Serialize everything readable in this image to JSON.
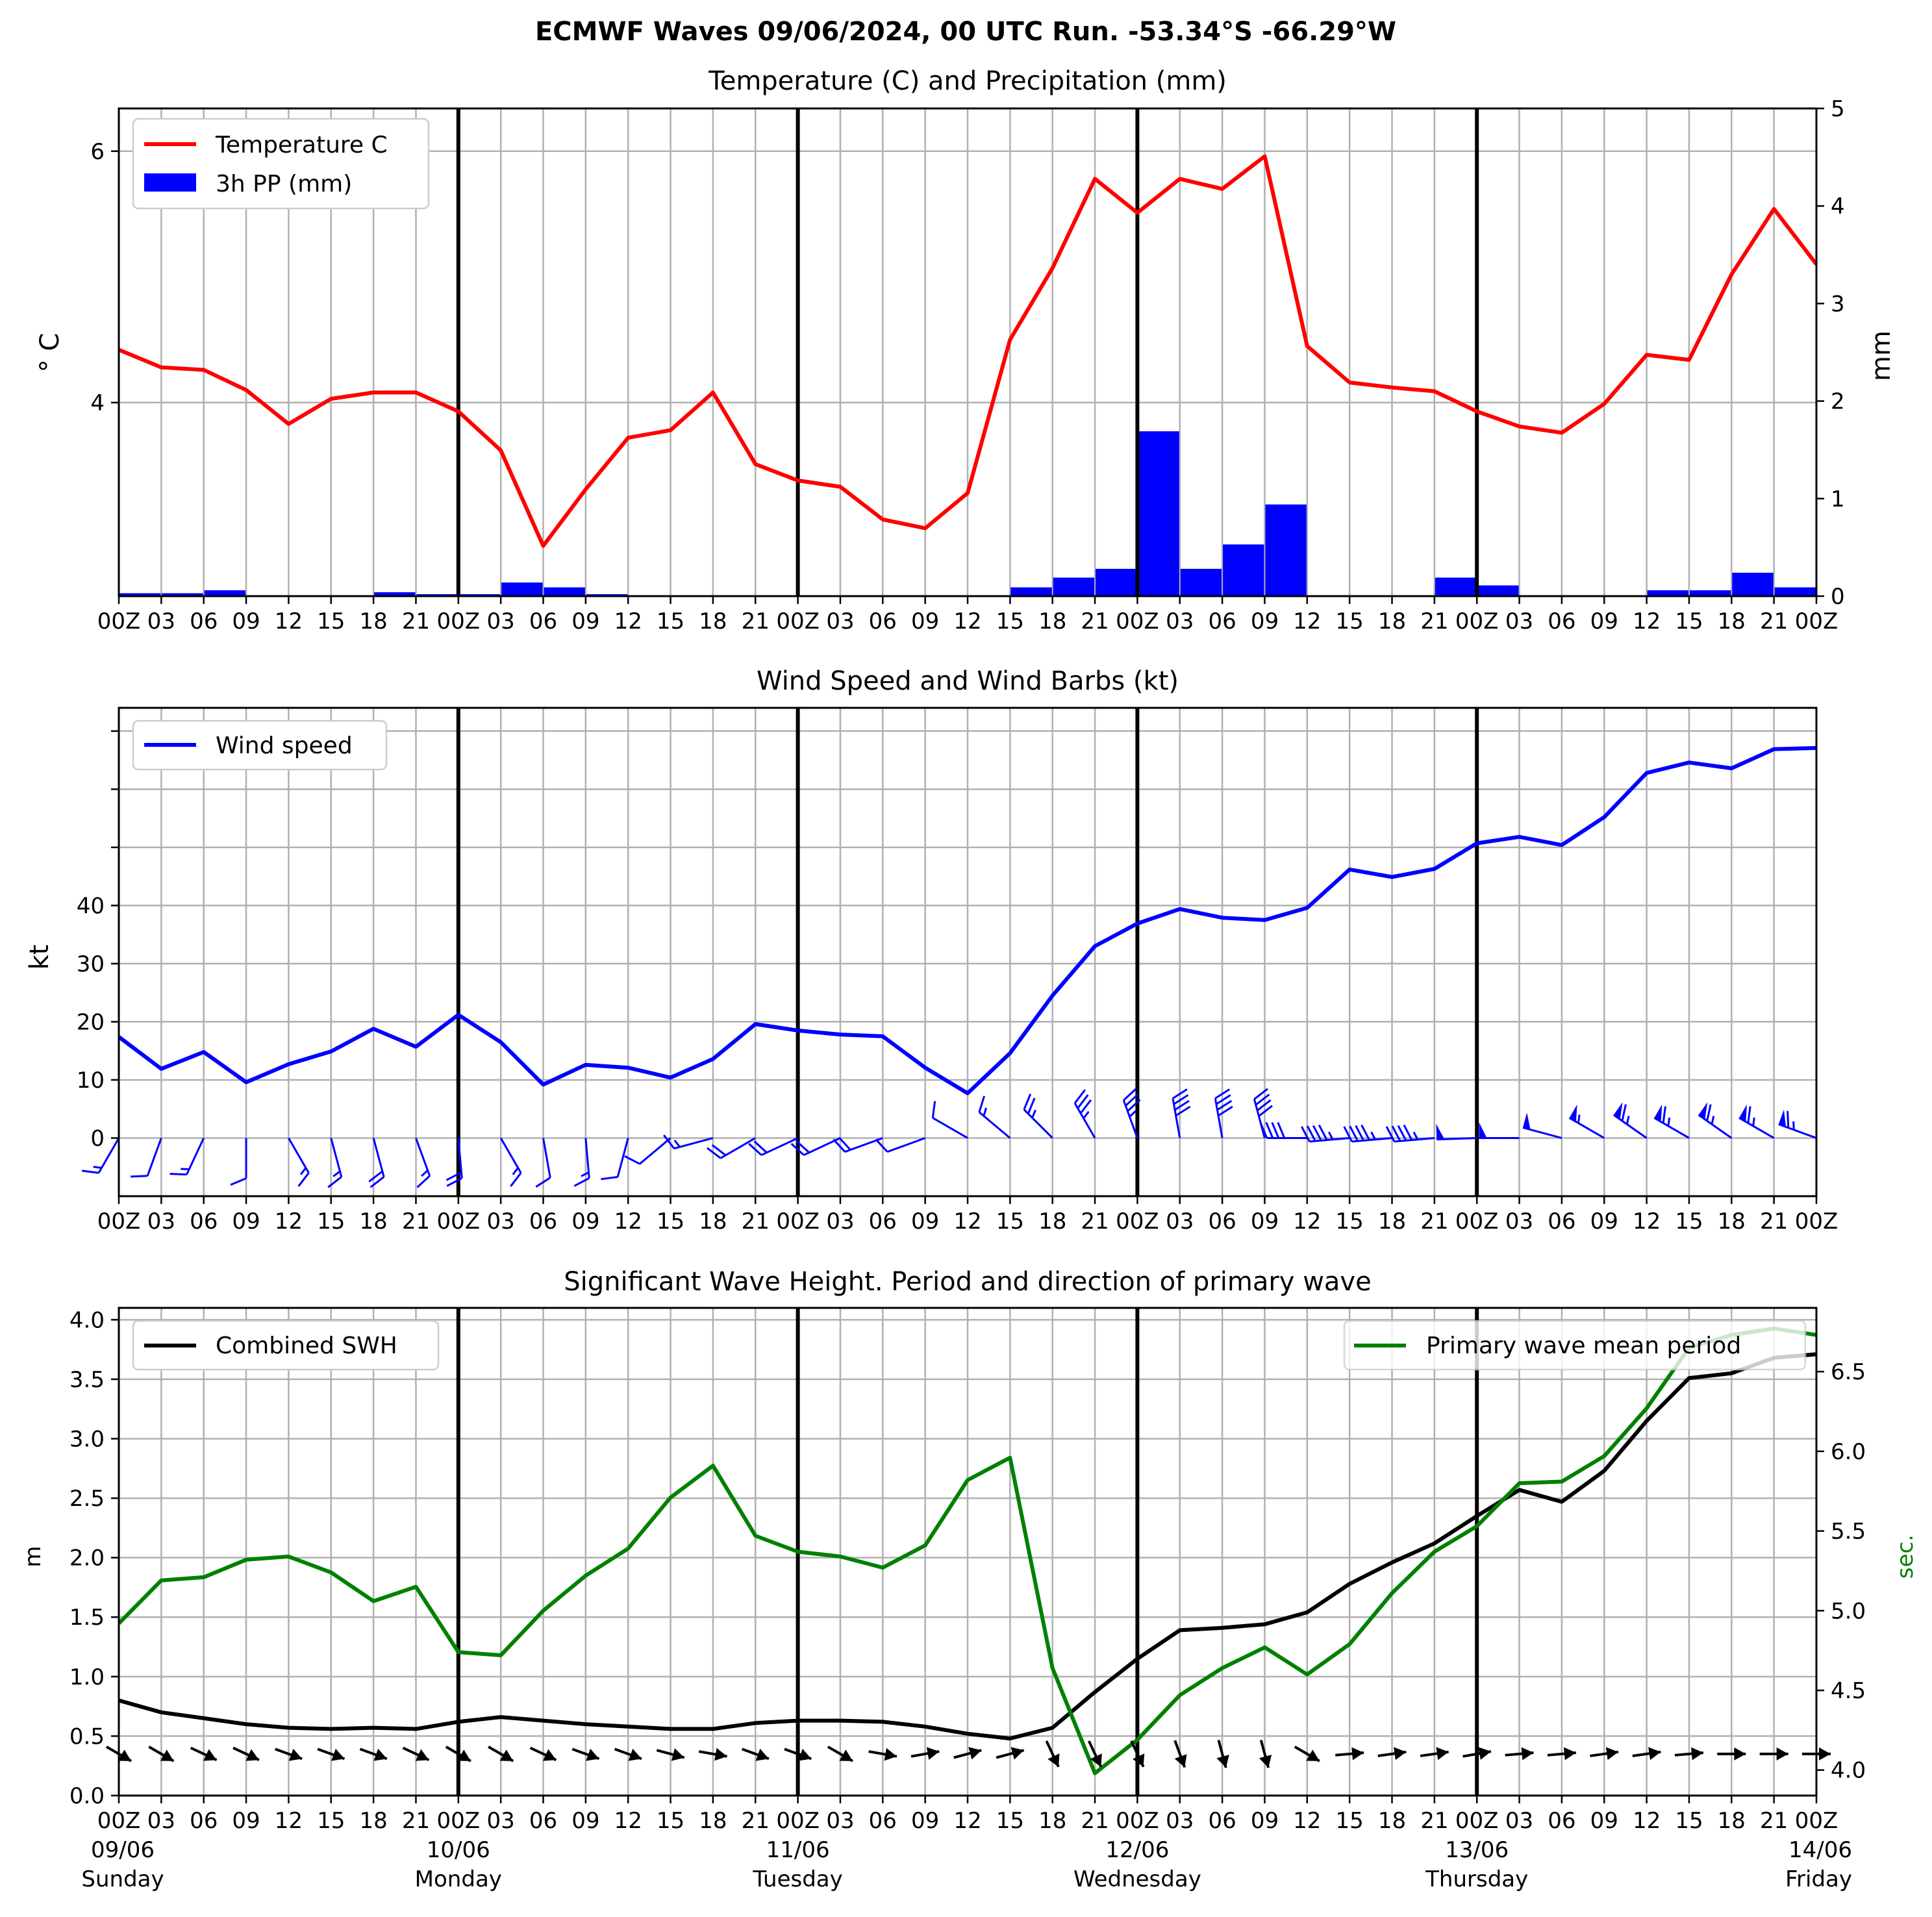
{
  "title": "ECMWF Waves 09/06/2024, 00 UTC Run. -53.34°S -66.29°W",
  "colors": {
    "temperature": "#ff0000",
    "precip": "#0000ff",
    "wind": "#0000ff",
    "swh": "#000000",
    "period": "#008000",
    "grid": "#b0b0b0"
  },
  "x_tick_labels": [
    "00Z",
    "03",
    "06",
    "09",
    "12",
    "15",
    "18",
    "21",
    "00Z",
    "03",
    "06",
    "09",
    "12",
    "15",
    "18",
    "21",
    "00Z",
    "03",
    "06",
    "09",
    "12",
    "15",
    "18",
    "21",
    "00Z",
    "03",
    "06",
    "09",
    "12",
    "15",
    "18",
    "21",
    "00Z",
    "03",
    "06",
    "09",
    "12",
    "15",
    "18",
    "21",
    "00Z"
  ],
  "day_labels": [
    {
      "date": "09/06",
      "day": "Sunday"
    },
    {
      "date": "10/06",
      "day": "Monday"
    },
    {
      "date": "11/06",
      "day": "Tuesday"
    },
    {
      "date": "12/06",
      "day": "Wednesday"
    },
    {
      "date": "13/06",
      "day": "Thursday"
    },
    {
      "date": "14/06",
      "day": "Friday"
    }
  ],
  "chart_data": [
    {
      "type": "line",
      "title": "Temperature (C) and Precipitation (mm)",
      "ylabel": "° C",
      "ylabel_right": "mm",
      "x_hours": [
        0,
        3,
        6,
        9,
        12,
        15,
        18,
        21,
        24,
        27,
        30,
        33,
        36,
        39,
        42,
        45,
        48,
        51,
        54,
        57,
        60,
        63,
        66,
        69,
        72,
        75,
        78,
        81,
        84,
        87,
        90,
        93,
        96,
        99,
        102,
        105,
        108,
        111,
        114,
        117,
        120
      ],
      "ylim": [
        2.46,
        6.34
      ],
      "yticks": [
        4,
        6
      ],
      "y2lim": [
        0,
        5
      ],
      "y2ticks": [
        0,
        1,
        2,
        3,
        4,
        5
      ],
      "legend": [
        "Temperature C",
        "3h PP (mm)"
      ],
      "legend_position": "top-left",
      "grid": true,
      "series": [
        {
          "name": "Temperature C",
          "axis": "left",
          "values": [
            4.42,
            4.28,
            4.26,
            4.1,
            3.83,
            4.03,
            4.08,
            4.08,
            3.93,
            3.62,
            2.86,
            3.31,
            3.72,
            3.78,
            4.08,
            3.51,
            3.38,
            3.33,
            3.07,
            3.0,
            3.28,
            4.5,
            5.07,
            5.78,
            5.51,
            5.78,
            5.7,
            5.96,
            4.45,
            4.16,
            4.12,
            4.09,
            3.93,
            3.81,
            3.76,
            3.99,
            4.38,
            4.34,
            5.02,
            5.54,
            5.1
          ]
        },
        {
          "name": "3h PP (mm)",
          "axis": "right",
          "type": "bar",
          "values": [
            0.03,
            0.03,
            0.06,
            0.01,
            0.01,
            0.01,
            0.04,
            0.02,
            0.02,
            0.14,
            0.09,
            0.02,
            0.01,
            0,
            0,
            0,
            0,
            0,
            0,
            0,
            0,
            0.09,
            0.19,
            0.28,
            1.69,
            0.28,
            0.53,
            0.94,
            0,
            0,
            0,
            0.19,
            0.11,
            0,
            0,
            0,
            0.06,
            0.06,
            0.24,
            0.09
          ]
        }
      ]
    },
    {
      "type": "line",
      "title": "Wind Speed and Wind Barbs (kt)",
      "ylabel": "kt",
      "x_hours": [
        0,
        3,
        6,
        9,
        12,
        15,
        18,
        21,
        24,
        27,
        30,
        33,
        36,
        39,
        42,
        45,
        48,
        51,
        54,
        57,
        60,
        63,
        66,
        69,
        72,
        75,
        78,
        81,
        84,
        87,
        90,
        93,
        96,
        99,
        102,
        105,
        108,
        111,
        114,
        117,
        120
      ],
      "ylim": [
        -10,
        74
      ],
      "yticks": [
        0,
        10,
        20,
        30,
        40
      ],
      "legend": [
        "Wind speed"
      ],
      "legend_position": "top-left",
      "grid": true,
      "series": [
        {
          "name": "Wind speed",
          "values": [
            17.4,
            11.9,
            14.8,
            9.6,
            12.7,
            14.9,
            18.8,
            15.7,
            21.2,
            16.5,
            9.2,
            12.6,
            12.1,
            10.4,
            13.6,
            19.6,
            18.5,
            17.8,
            17.5,
            12.1,
            7.7,
            14.6,
            24.5,
            33.0,
            36.9,
            39.4,
            37.9,
            37.5,
            39.6,
            46.2,
            44.9,
            46.3,
            50.7,
            51.8,
            50.4,
            55.2,
            62.8,
            64.6,
            63.6,
            66.9,
            67.1
          ]
        }
      ],
      "wind_direction_deg": [
        210,
        200,
        205,
        180,
        150,
        165,
        165,
        160,
        175,
        150,
        170,
        175,
        195,
        230,
        255,
        240,
        245,
        245,
        250,
        250,
        300,
        310,
        315,
        330,
        340,
        350,
        350,
        345,
        270,
        265,
        265,
        265,
        268,
        270,
        285,
        300,
        305,
        300,
        305,
        300,
        290
      ]
    },
    {
      "type": "line",
      "title": "Significant Wave Height. Period and direction of primary wave",
      "ylabel": "m",
      "ylabel_right": "sec.",
      "x_hours": [
        0,
        3,
        6,
        9,
        12,
        15,
        18,
        21,
        24,
        27,
        30,
        33,
        36,
        39,
        42,
        45,
        48,
        51,
        54,
        57,
        60,
        63,
        66,
        69,
        72,
        75,
        78,
        81,
        84,
        87,
        90,
        93,
        96,
        99,
        102,
        105,
        108,
        111,
        114,
        117,
        120
      ],
      "ylim": [
        0,
        4.1
      ],
      "yticks": [
        0.0,
        0.5,
        1.0,
        1.5,
        2.0,
        2.5,
        3.0,
        3.5,
        4.0
      ],
      "y2lim": [
        3.84,
        6.9
      ],
      "y2ticks": [
        4.0,
        4.5,
        5.0,
        5.5,
        6.0,
        6.5
      ],
      "legend": [
        "Combined SWH",
        "Primary wave mean period"
      ],
      "grid": true,
      "series": [
        {
          "name": "Combined SWH",
          "axis": "left",
          "values": [
            0.8,
            0.7,
            0.65,
            0.6,
            0.57,
            0.56,
            0.57,
            0.56,
            0.62,
            0.66,
            0.63,
            0.6,
            0.58,
            0.56,
            0.56,
            0.61,
            0.63,
            0.63,
            0.62,
            0.58,
            0.52,
            0.48,
            0.57,
            0.87,
            1.15,
            1.39,
            1.41,
            1.44,
            1.54,
            1.78,
            1.96,
            2.12,
            2.35,
            2.57,
            2.47,
            2.73,
            3.15,
            3.51,
            3.55,
            3.68,
            3.71
          ]
        },
        {
          "name": "Primary wave mean period",
          "axis": "right",
          "values": [
            4.92,
            5.19,
            5.21,
            5.32,
            5.34,
            5.24,
            5.06,
            5.15,
            4.74,
            4.72,
            5.0,
            5.22,
            5.39,
            5.71,
            5.91,
            5.47,
            5.37,
            5.34,
            5.27,
            5.41,
            5.82,
            5.96,
            4.64,
            3.98,
            4.19,
            4.47,
            4.64,
            4.77,
            4.6,
            4.79,
            5.11,
            5.37,
            5.53,
            5.8,
            5.81,
            5.97,
            6.27,
            6.65,
            6.73,
            6.77,
            6.73
          ]
        }
      ],
      "wave_direction_deg": [
        300,
        300,
        295,
        295,
        290,
        290,
        290,
        295,
        300,
        300,
        295,
        290,
        290,
        285,
        280,
        290,
        290,
        300,
        280,
        260,
        255,
        255,
        335,
        335,
        335,
        340,
        345,
        345,
        300,
        265,
        262,
        262,
        260,
        265,
        265,
        262,
        262,
        265,
        270,
        270,
        270
      ]
    }
  ]
}
